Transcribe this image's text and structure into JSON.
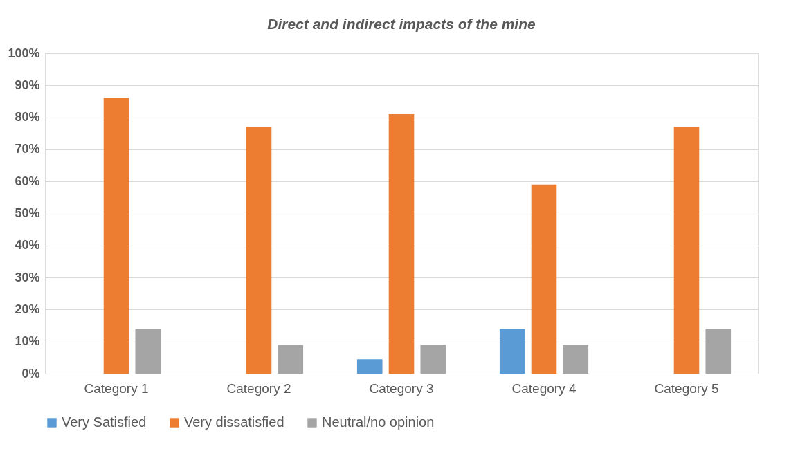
{
  "chart_data": {
    "type": "bar",
    "title": "Direct and indirect impacts of the mine",
    "categories": [
      "Category 1",
      "Category 2",
      "Category 3",
      "Category 4",
      "Category 5"
    ],
    "series": [
      {
        "name": "Very Satisfied",
        "color": "#5b9bd5",
        "values": [
          0,
          0,
          4.5,
          14,
          0
        ]
      },
      {
        "name": "Very dissatisfied",
        "color": "#ed7d31",
        "values": [
          86,
          77,
          81,
          59,
          77
        ]
      },
      {
        "name": "Neutral/no opinion",
        "color": "#a5a5a5",
        "values": [
          14,
          9,
          9,
          9,
          14
        ]
      }
    ],
    "ylim": [
      0,
      100
    ],
    "yticks": [
      {
        "value": 0,
        "label": "0%"
      },
      {
        "value": 10,
        "label": "10%"
      },
      {
        "value": 20,
        "label": "20%"
      },
      {
        "value": 30,
        "label": "30%"
      },
      {
        "value": 40,
        "label": "40%"
      },
      {
        "value": 50,
        "label": "50%"
      },
      {
        "value": 60,
        "label": "60%"
      },
      {
        "value": 70,
        "label": "70%"
      },
      {
        "value": 80,
        "label": "80%"
      },
      {
        "value": 90,
        "label": "90%"
      },
      {
        "value": 100,
        "label": "100%"
      }
    ],
    "grid": "y",
    "legend": "bottom"
  }
}
